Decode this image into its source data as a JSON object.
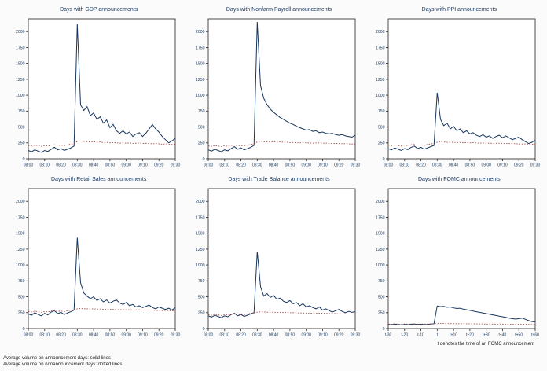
{
  "notes": {
    "footer_line1": "Average volume on announcement days: solid lines",
    "footer_line2": "Average volume on nonannouncement days: dotted lines",
    "fomc_note": "t denotes the time of an FOMC announcement"
  },
  "colors": {
    "announcement_line": "#17365d",
    "nonannouncement_line": "#9c3a36",
    "axis": "#231f20",
    "tick_label": "#17365d",
    "plot_bg": "#ffffff"
  },
  "chart_data": [
    {
      "type": "line",
      "title": "Days with GDP announcements",
      "x_tick_labels": [
        "08:00",
        "08:10",
        "08:20",
        "08:30",
        "08:40",
        "08:50",
        "09:00",
        "09:10",
        "09:20",
        "09:30"
      ],
      "y_ticks": [
        0,
        250,
        500,
        750,
        1000,
        1250,
        1500,
        1750,
        2000
      ],
      "ylim": [
        0,
        2200
      ],
      "series": [
        {
          "name": "Average volume on announcement days",
          "style": "solid",
          "values": [
            130,
            110,
            140,
            120,
            100,
            130,
            115,
            150,
            180,
            140,
            160,
            130,
            150,
            170,
            200,
            2120,
            850,
            760,
            820,
            680,
            720,
            620,
            660,
            560,
            610,
            490,
            540,
            440,
            400,
            440,
            390,
            420,
            350,
            390,
            410,
            350,
            400,
            470,
            540,
            470,
            420,
            350,
            300,
            250,
            280,
            320
          ]
        },
        {
          "name": "Average volume on nonannouncement days",
          "style": "dotted",
          "values": [
            210,
            200,
            215,
            205,
            195,
            210,
            200,
            215,
            220,
            210,
            215,
            205,
            220,
            230,
            240,
            270,
            280,
            275,
            270,
            265,
            270,
            260,
            265,
            255,
            260,
            250,
            255,
            250,
            245,
            250,
            245,
            250,
            240,
            245,
            250,
            240,
            245,
            240,
            235,
            240,
            235,
            230,
            235,
            230,
            225,
            230
          ]
        }
      ]
    },
    {
      "type": "line",
      "title": "Days with Nonfarm Payroll announcements",
      "x_tick_labels": [
        "08:00",
        "08:10",
        "08:20",
        "08:30",
        "08:40",
        "08:50",
        "09:00",
        "09:10",
        "09:20",
        "09:30"
      ],
      "y_ticks": [
        0,
        250,
        500,
        750,
        1000,
        1250,
        1500,
        1750,
        2000
      ],
      "ylim": [
        0,
        2200
      ],
      "series": [
        {
          "name": "Average volume on announcement days",
          "style": "solid",
          "values": [
            140,
            120,
            150,
            130,
            110,
            140,
            125,
            160,
            190,
            150,
            170,
            140,
            160,
            180,
            210,
            2150,
            1150,
            950,
            850,
            780,
            730,
            690,
            650,
            620,
            590,
            560,
            540,
            510,
            490,
            470,
            450,
            460,
            430,
            440,
            410,
            420,
            400,
            390,
            400,
            380,
            370,
            380,
            360,
            350,
            340,
            370
          ]
        },
        {
          "name": "Average volume on nonannouncement days",
          "style": "dotted",
          "values": [
            205,
            195,
            210,
            200,
            190,
            205,
            195,
            210,
            215,
            205,
            210,
            200,
            215,
            225,
            235,
            265,
            275,
            270,
            268,
            265,
            268,
            262,
            265,
            258,
            262,
            255,
            258,
            252,
            250,
            252,
            248,
            250,
            245,
            248,
            250,
            245,
            246,
            242,
            240,
            242,
            238,
            236,
            238,
            234,
            232,
            235
          ]
        }
      ]
    },
    {
      "type": "line",
      "title": "Days with PPI announcements",
      "x_tick_labels": [
        "08:00",
        "08:10",
        "08:20",
        "08:30",
        "08:40",
        "08:50",
        "09:00",
        "09:10",
        "09:20",
        "09:30"
      ],
      "y_ticks": [
        0,
        250,
        500,
        750,
        1000,
        1250,
        1500,
        1750,
        2000
      ],
      "ylim": [
        0,
        2200
      ],
      "series": [
        {
          "name": "Average volume on announcement days",
          "style": "solid",
          "values": [
            160,
            140,
            170,
            150,
            130,
            160,
            145,
            180,
            200,
            160,
            180,
            150,
            170,
            190,
            210,
            1040,
            620,
            520,
            560,
            470,
            510,
            440,
            470,
            410,
            440,
            390,
            410,
            370,
            350,
            380,
            340,
            360,
            320,
            350,
            370,
            330,
            360,
            330,
            300,
            320,
            340,
            300,
            270,
            240,
            260,
            290
          ]
        },
        {
          "name": "Average volume on nonannouncement days",
          "style": "dotted",
          "values": [
            215,
            205,
            220,
            210,
            200,
            215,
            205,
            220,
            225,
            215,
            220,
            210,
            225,
            235,
            240,
            260,
            265,
            262,
            260,
            258,
            260,
            255,
            258,
            252,
            255,
            250,
            252,
            248,
            246,
            248,
            244,
            246,
            242,
            244,
            246,
            242,
            240,
            238,
            240,
            236,
            234,
            232,
            234,
            230,
            228,
            230
          ]
        }
      ]
    },
    {
      "type": "line",
      "title": "Days with Retail Sales announcements",
      "x_tick_labels": [
        "08:00",
        "08:10",
        "08:20",
        "08:30",
        "08:40",
        "08:50",
        "09:00",
        "09:10",
        "09:20",
        "09:30"
      ],
      "y_ticks": [
        0,
        250,
        500,
        750,
        1000,
        1250,
        1500,
        1750,
        2000
      ],
      "ylim": [
        0,
        2200
      ],
      "series": [
        {
          "name": "Average volume on announcement days",
          "style": "solid",
          "values": [
            230,
            210,
            250,
            220,
            200,
            240,
            215,
            260,
            280,
            235,
            255,
            220,
            245,
            265,
            290,
            1430,
            720,
            560,
            510,
            470,
            500,
            440,
            470,
            420,
            450,
            400,
            430,
            450,
            400,
            380,
            410,
            360,
            380,
            340,
            360,
            330,
            350,
            370,
            330,
            310,
            340,
            320,
            300,
            320,
            290,
            330
          ]
        },
        {
          "name": "Average volume on nonannouncement days",
          "style": "dotted",
          "values": [
            270,
            260,
            275,
            265,
            255,
            270,
            260,
            275,
            280,
            270,
            275,
            265,
            280,
            290,
            295,
            310,
            315,
            312,
            310,
            308,
            310,
            305,
            308,
            302,
            305,
            300,
            302,
            298,
            296,
            298,
            294,
            296,
            292,
            294,
            296,
            292,
            290,
            288,
            290,
            286,
            284,
            282,
            284,
            280,
            278,
            280
          ]
        }
      ]
    },
    {
      "type": "line",
      "title": "Days with Trade Balance announcements",
      "x_tick_labels": [
        "08:00",
        "08:10",
        "08:20",
        "08:30",
        "08:40",
        "08:50",
        "09:00",
        "09:10",
        "09:20",
        "09:30"
      ],
      "y_ticks": [
        0,
        250,
        500,
        750,
        1000,
        1250,
        1500,
        1750,
        2000
      ],
      "ylim": [
        0,
        2200
      ],
      "series": [
        {
          "name": "Average volume on announcement days",
          "style": "solid",
          "values": [
            200,
            180,
            210,
            190,
            170,
            200,
            185,
            220,
            240,
            200,
            220,
            190,
            210,
            230,
            250,
            1210,
            660,
            510,
            550,
            490,
            520,
            460,
            480,
            430,
            410,
            440,
            390,
            410,
            360,
            390,
            340,
            360,
            330,
            310,
            340,
            290,
            310,
            280,
            260,
            280,
            300,
            270,
            250,
            270,
            255,
            265
          ]
        },
        {
          "name": "Average volume on nonannouncement days",
          "style": "dotted",
          "values": [
            220,
            210,
            225,
            215,
            205,
            220,
            210,
            225,
            230,
            220,
            225,
            215,
            230,
            240,
            245,
            258,
            262,
            260,
            258,
            256,
            258,
            253,
            256,
            250,
            253,
            248,
            250,
            246,
            244,
            246,
            242,
            244,
            240,
            242,
            244,
            240,
            238,
            236,
            238,
            234,
            232,
            230,
            232,
            228,
            226,
            228
          ]
        }
      ]
    },
    {
      "type": "line",
      "title": "Days with FOMC announcements",
      "x_tick_labels": [
        "t-30",
        "t-20",
        "t-10",
        "t",
        "t+10",
        "t+20",
        "t+30",
        "t+40",
        "t+50",
        "t+60"
      ],
      "y_ticks": [
        0,
        250,
        500,
        750,
        1000,
        1250,
        1500,
        1750,
        2000
      ],
      "ylim": [
        0,
        2200
      ],
      "series": [
        {
          "name": "Average volume on announcement days",
          "style": "solid",
          "values": [
            65,
            60,
            70,
            62,
            58,
            66,
            60,
            68,
            72,
            64,
            68,
            62,
            66,
            70,
            75,
            355,
            345,
            350,
            335,
            340,
            325,
            315,
            320,
            305,
            295,
            285,
            275,
            265,
            255,
            245,
            235,
            225,
            215,
            205,
            195,
            185,
            175,
            165,
            155,
            150,
            155,
            165,
            145,
            125,
            110,
            105
          ]
        },
        {
          "name": "Average volume on nonannouncement days",
          "style": "dotted",
          "values": [
            72,
            70,
            74,
            71,
            69,
            72,
            70,
            73,
            74,
            71,
            73,
            70,
            72,
            74,
            75,
            78,
            80,
            79,
            78,
            77,
            78,
            76,
            77,
            75,
            76,
            74,
            75,
            73,
            72,
            73,
            71,
            72,
            70,
            71,
            72,
            70,
            69,
            68,
            69,
            67,
            66,
            65,
            66,
            64,
            63,
            64
          ]
        }
      ]
    }
  ]
}
